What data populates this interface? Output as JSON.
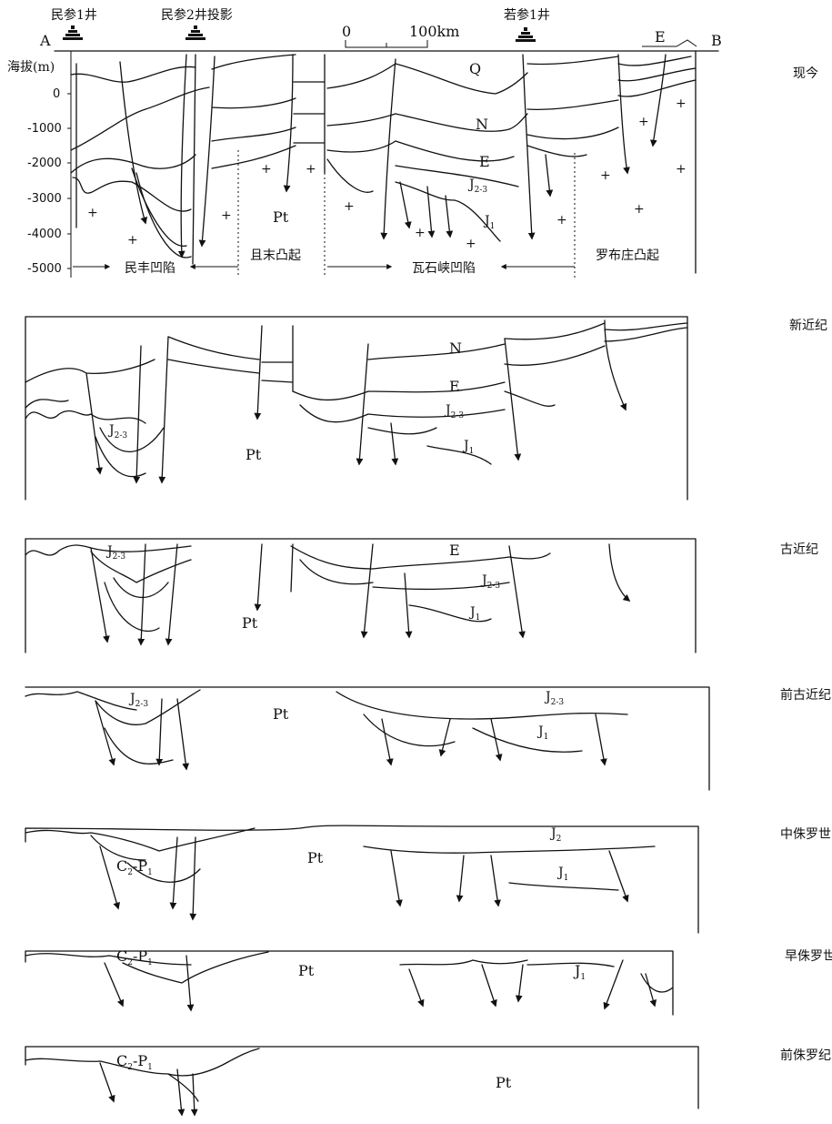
{
  "header": {
    "point_a": "A",
    "point_b": "B",
    "well_1": "民参1井",
    "well_2": "民参2井投影",
    "well_3": "若参1井",
    "scale_zero": "0",
    "scale_end": "100km",
    "e_mark": "E",
    "y_axis_title": "海拔(m)",
    "y_ticks": [
      "0",
      "-1000",
      "-2000",
      "-3000",
      "-4000",
      "-5000"
    ]
  },
  "units": {
    "minfeng": "民丰凹陷",
    "qiemo": "且末凸起",
    "washixia": "瓦石峡凹陷",
    "luobuzhuang": "罗布庄凸起"
  },
  "stages": [
    {
      "time": "现今",
      "labels": [
        "Q",
        "N",
        "E",
        "J2-3",
        "J1",
        "Pt"
      ]
    },
    {
      "time": "新近纪",
      "labels": [
        "N",
        "E",
        "J2-3",
        "J2-3",
        "J1",
        "Pt"
      ]
    },
    {
      "time": "古近纪",
      "labels": [
        "E",
        "J2-3",
        "J2-3",
        "J1",
        "Pt"
      ]
    },
    {
      "time": "前古近纪",
      "labels": [
        "J2-3",
        "J2-3",
        "J1",
        "Pt"
      ]
    },
    {
      "time": "中侏罗世",
      "labels": [
        "J2",
        "C2-P1",
        "J1",
        "Pt"
      ]
    },
    {
      "time": "早侏罗世",
      "labels": [
        "C2-P1",
        "J1",
        "Pt"
      ]
    },
    {
      "time": "前侏罗纪",
      "labels": [
        "C2-P1",
        "Pt"
      ]
    }
  ]
}
